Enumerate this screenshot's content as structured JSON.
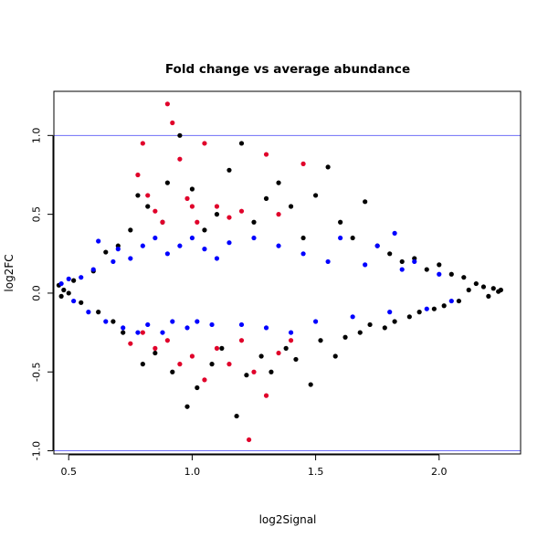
{
  "chart_data": {
    "type": "scatter",
    "title": "Fold change vs average abundance",
    "xlabel": "log2Signal",
    "ylabel": "log2FC",
    "xlim": [
      0.44,
      2.33
    ],
    "ylim": [
      -1.02,
      1.28
    ],
    "x_ticks": [
      0.5,
      1.0,
      1.5,
      2.0
    ],
    "x_tick_labels": [
      "0.5",
      "1.0",
      "1.5",
      "2.0"
    ],
    "y_ticks": [
      -1.0,
      -0.5,
      0.0,
      0.5,
      1.0
    ],
    "y_tick_labels": [
      "-1.0",
      "-0.5",
      "0.0",
      "0.5",
      "1.0"
    ],
    "reference_lines": {
      "y": [
        1.0,
        -1.0
      ],
      "color": "#6f6ff7"
    },
    "grid": false,
    "series": [
      {
        "color": "#000000",
        "values": [
          [
            0.46,
            0.05
          ],
          [
            0.47,
            -0.02
          ],
          [
            0.48,
            0.02
          ],
          [
            0.5,
            0.0
          ],
          [
            0.52,
            0.08
          ],
          [
            0.55,
            -0.06
          ],
          [
            0.6,
            0.14
          ],
          [
            0.62,
            -0.12
          ],
          [
            0.65,
            0.26
          ],
          [
            0.68,
            -0.18
          ],
          [
            0.7,
            0.3
          ],
          [
            0.72,
            -0.25
          ],
          [
            0.75,
            0.4
          ],
          [
            0.78,
            0.62
          ],
          [
            0.8,
            -0.45
          ],
          [
            0.82,
            0.55
          ],
          [
            0.85,
            -0.38
          ],
          [
            0.88,
            0.45
          ],
          [
            0.9,
            0.7
          ],
          [
            0.92,
            -0.5
          ],
          [
            0.95,
            1.0
          ],
          [
            0.98,
            -0.72
          ],
          [
            1.0,
            0.66
          ],
          [
            1.02,
            -0.6
          ],
          [
            1.05,
            0.4
          ],
          [
            1.08,
            -0.45
          ],
          [
            1.1,
            0.5
          ],
          [
            1.12,
            -0.35
          ],
          [
            1.15,
            0.78
          ],
          [
            1.18,
            -0.78
          ],
          [
            1.2,
            0.95
          ],
          [
            1.22,
            -0.52
          ],
          [
            1.25,
            0.45
          ],
          [
            1.28,
            -0.4
          ],
          [
            1.3,
            0.6
          ],
          [
            1.32,
            -0.5
          ],
          [
            1.35,
            0.7
          ],
          [
            1.38,
            -0.35
          ],
          [
            1.4,
            0.55
          ],
          [
            1.42,
            -0.42
          ],
          [
            1.45,
            0.35
          ],
          [
            1.48,
            -0.58
          ],
          [
            1.5,
            0.62
          ],
          [
            1.52,
            -0.3
          ],
          [
            1.55,
            0.8
          ],
          [
            1.58,
            -0.4
          ],
          [
            1.6,
            0.45
          ],
          [
            1.62,
            -0.28
          ],
          [
            1.65,
            0.35
          ],
          [
            1.68,
            -0.25
          ],
          [
            1.7,
            0.58
          ],
          [
            1.72,
            -0.2
          ],
          [
            1.75,
            0.3
          ],
          [
            1.78,
            -0.22
          ],
          [
            1.8,
            0.25
          ],
          [
            1.82,
            -0.18
          ],
          [
            1.85,
            0.2
          ],
          [
            1.88,
            -0.15
          ],
          [
            1.9,
            0.22
          ],
          [
            1.92,
            -0.12
          ],
          [
            1.95,
            0.15
          ],
          [
            1.98,
            -0.1
          ],
          [
            2.0,
            0.18
          ],
          [
            2.02,
            -0.08
          ],
          [
            2.05,
            0.12
          ],
          [
            2.08,
            -0.05
          ],
          [
            2.1,
            0.1
          ],
          [
            2.12,
            0.02
          ],
          [
            2.15,
            0.06
          ],
          [
            2.18,
            0.04
          ],
          [
            2.2,
            -0.02
          ],
          [
            2.22,
            0.03
          ],
          [
            2.24,
            0.01
          ],
          [
            2.25,
            0.02
          ]
        ]
      },
      {
        "color": "#0000ff",
        "values": [
          [
            0.47,
            0.06
          ],
          [
            0.5,
            0.09
          ],
          [
            0.52,
            -0.05
          ],
          [
            0.55,
            0.1
          ],
          [
            0.58,
            -0.12
          ],
          [
            0.6,
            0.15
          ],
          [
            0.62,
            0.33
          ],
          [
            0.65,
            -0.18
          ],
          [
            0.68,
            0.2
          ],
          [
            0.7,
            0.28
          ],
          [
            0.72,
            -0.22
          ],
          [
            0.75,
            0.22
          ],
          [
            0.78,
            -0.25
          ],
          [
            0.8,
            0.3
          ],
          [
            0.82,
            -0.2
          ],
          [
            0.85,
            0.35
          ],
          [
            0.88,
            -0.25
          ],
          [
            0.9,
            0.25
          ],
          [
            0.92,
            -0.18
          ],
          [
            0.95,
            0.3
          ],
          [
            0.98,
            -0.22
          ],
          [
            1.0,
            0.35
          ],
          [
            1.02,
            -0.18
          ],
          [
            1.05,
            0.28
          ],
          [
            1.08,
            -0.2
          ],
          [
            1.1,
            0.22
          ],
          [
            1.15,
            0.32
          ],
          [
            1.2,
            -0.2
          ],
          [
            1.25,
            0.35
          ],
          [
            1.3,
            -0.22
          ],
          [
            1.35,
            0.3
          ],
          [
            1.4,
            -0.25
          ],
          [
            1.45,
            0.25
          ],
          [
            1.5,
            -0.18
          ],
          [
            1.55,
            0.2
          ],
          [
            1.6,
            0.35
          ],
          [
            1.65,
            -0.15
          ],
          [
            1.7,
            0.18
          ],
          [
            1.75,
            0.3
          ],
          [
            1.8,
            -0.12
          ],
          [
            1.82,
            0.38
          ],
          [
            1.85,
            0.15
          ],
          [
            1.9,
            0.2
          ],
          [
            1.95,
            -0.1
          ],
          [
            2.0,
            0.12
          ],
          [
            2.05,
            -0.05
          ]
        ]
      },
      {
        "color": "#e0002a",
        "values": [
          [
            0.8,
            0.95
          ],
          [
            0.78,
            0.75
          ],
          [
            0.82,
            0.62
          ],
          [
            0.85,
            0.52
          ],
          [
            0.88,
            0.45
          ],
          [
            0.9,
            1.2
          ],
          [
            0.92,
            1.08
          ],
          [
            0.95,
            0.85
          ],
          [
            0.98,
            0.6
          ],
          [
            1.0,
            0.55
          ],
          [
            1.02,
            0.45
          ],
          [
            1.05,
            0.95
          ],
          [
            1.1,
            0.55
          ],
          [
            1.15,
            0.48
          ],
          [
            1.2,
            0.52
          ],
          [
            1.3,
            0.88
          ],
          [
            1.35,
            0.5
          ],
          [
            1.45,
            0.82
          ],
          [
            0.75,
            -0.32
          ],
          [
            0.8,
            -0.25
          ],
          [
            0.85,
            -0.35
          ],
          [
            0.9,
            -0.3
          ],
          [
            0.95,
            -0.45
          ],
          [
            1.0,
            -0.4
          ],
          [
            1.05,
            -0.55
          ],
          [
            1.1,
            -0.35
          ],
          [
            1.15,
            -0.45
          ],
          [
            1.2,
            -0.3
          ],
          [
            1.25,
            -0.5
          ],
          [
            1.3,
            -0.65
          ],
          [
            1.35,
            -0.38
          ],
          [
            1.4,
            -0.3
          ],
          [
            1.23,
            -0.93
          ]
        ]
      }
    ]
  }
}
